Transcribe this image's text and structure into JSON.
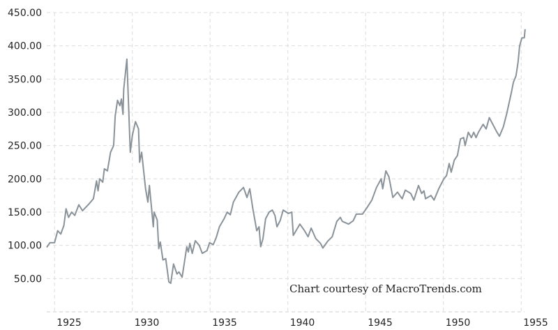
{
  "chart_data": {
    "type": "line",
    "title": "",
    "xlabel": "",
    "ylabel": "",
    "xlim": [
      1924.48,
      1955.25
    ],
    "ylim": [
      0,
      450
    ],
    "grid": true,
    "y_ticks": [
      "50.00",
      "100.00",
      "150.00",
      "200.00",
      "250.00",
      "300.00",
      "350.00",
      "400.00",
      "450.00"
    ],
    "x_ticks": [
      "1925",
      "1930",
      "1935",
      "1940",
      "1945",
      "1950",
      "1955"
    ],
    "line_color": "#8a9299",
    "annotation": "Chart courtesy of MacroTrends.com",
    "series": [
      {
        "x": [
          1924.5,
          1924.7,
          1925.0,
          1925.2,
          1925.4,
          1925.6,
          1925.74,
          1925.9,
          1926.1,
          1926.3,
          1926.56,
          1926.8,
          1927.0,
          1927.2,
          1927.5,
          1927.7,
          1927.8,
          1927.9,
          1928.1,
          1928.2,
          1928.4,
          1928.6,
          1928.8,
          1928.9,
          1929.05,
          1929.2,
          1929.3,
          1929.4,
          1929.45,
          1929.65,
          1929.87,
          1930.0,
          1930.2,
          1930.4,
          1930.47,
          1930.6,
          1930.85,
          1931.0,
          1931.1,
          1931.35,
          1931.4,
          1931.6,
          1931.7,
          1931.8,
          1931.97,
          1932.15,
          1932.35,
          1932.47,
          1932.65,
          1932.87,
          1933.0,
          1933.2,
          1933.5,
          1933.6,
          1933.7,
          1933.85,
          1934.05,
          1934.3,
          1934.5,
          1934.8,
          1934.97,
          1935.2,
          1935.4,
          1935.6,
          1935.9,
          1936.1,
          1936.3,
          1936.5,
          1936.85,
          1937.15,
          1937.37,
          1937.55,
          1937.75,
          1938.0,
          1938.15,
          1938.25,
          1938.4,
          1938.57,
          1938.8,
          1939.0,
          1939.17,
          1939.3,
          1939.5,
          1939.7,
          1940.03,
          1940.25,
          1940.35,
          1940.77,
          1941.07,
          1941.3,
          1941.5,
          1941.8,
          1942.1,
          1942.25,
          1942.55,
          1942.85,
          1943.15,
          1943.37,
          1943.5,
          1943.9,
          1944.2,
          1944.4,
          1944.8,
          1945.1,
          1945.4,
          1945.7,
          1946.0,
          1946.1,
          1946.3,
          1946.5,
          1946.75,
          1947.05,
          1947.35,
          1947.55,
          1947.9,
          1948.1,
          1948.4,
          1948.6,
          1948.75,
          1948.85,
          1949.2,
          1949.4,
          1949.7,
          1950.03,
          1950.2,
          1950.37,
          1950.5,
          1950.7,
          1950.9,
          1951.1,
          1951.3,
          1951.4,
          1951.6,
          1951.8,
          1951.95,
          1952.1,
          1952.25,
          1952.55,
          1952.75,
          1952.95,
          1953.4,
          1953.6,
          1953.85,
          1954.07,
          1954.37,
          1954.5,
          1954.67,
          1954.8,
          1954.9,
          1955.05,
          1955.2,
          1955.25
        ],
        "y": [
          97,
          104,
          104,
          122,
          117,
          130,
          155,
          142,
          150,
          145,
          161,
          152,
          157,
          162,
          170,
          197,
          182,
          200,
          195,
          215,
          212,
          240,
          250,
          295,
          318,
          310,
          320,
          297,
          335,
          380,
          240,
          265,
          286,
          275,
          225,
          240,
          185,
          165,
          190,
          128,
          150,
          138,
          95,
          105,
          78,
          80,
          45,
          43,
          72,
          57,
          60,
          52,
          98,
          90,
          103,
          88,
          107,
          100,
          88,
          92,
          104,
          101,
          112,
          128,
          140,
          150,
          146,
          165,
          180,
          187,
          172,
          185,
          155,
          122,
          128,
          98,
          110,
          140,
          150,
          153,
          145,
          128,
          137,
          153,
          148,
          150,
          115,
          132,
          122,
          113,
          126,
          110,
          103,
          96,
          106,
          113,
          136,
          142,
          136,
          132,
          137,
          147,
          147,
          157,
          168,
          187,
          200,
          185,
          212,
          203,
          172,
          180,
          170,
          183,
          178,
          168,
          190,
          178,
          182,
          170,
          175,
          168,
          185,
          200,
          205,
          223,
          210,
          228,
          235,
          260,
          262,
          250,
          270,
          262,
          270,
          262,
          270,
          282,
          275,
          292,
          272,
          264,
          278,
          298,
          330,
          345,
          355,
          375,
          400,
          412,
          412,
          425
        ]
      }
    ]
  }
}
